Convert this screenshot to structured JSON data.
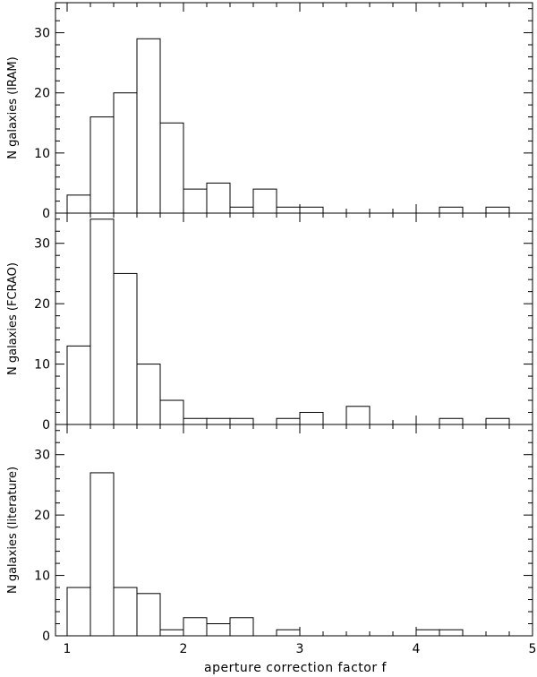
{
  "chart_data": [
    {
      "type": "bar",
      "panel": "top",
      "ylabel": "N galaxies (IRAM)",
      "ylim": [
        0,
        35
      ],
      "yticks": [
        "0",
        "10",
        "20",
        "30"
      ],
      "x_bin_edges": [
        1.0,
        1.2,
        1.4,
        1.6,
        1.8,
        2.0,
        2.2,
        2.4,
        2.6,
        2.8,
        3.0,
        3.2,
        3.4,
        3.6,
        3.8,
        4.0,
        4.2,
        4.4,
        4.6,
        4.8
      ],
      "values": [
        3,
        16,
        20,
        29,
        15,
        4,
        5,
        1,
        4,
        1,
        1,
        0,
        0,
        0,
        0,
        0,
        1,
        0,
        1
      ]
    },
    {
      "type": "bar",
      "panel": "middle",
      "ylabel": "N galaxies (FCRAO)",
      "ylim": [
        0,
        35
      ],
      "yticks": [
        "0",
        "10",
        "20",
        "30"
      ],
      "x_bin_edges": [
        1.0,
        1.2,
        1.4,
        1.6,
        1.8,
        2.0,
        2.2,
        2.4,
        2.6,
        2.8,
        3.0,
        3.2,
        3.4,
        3.6,
        3.8,
        4.0,
        4.2,
        4.4,
        4.6,
        4.8
      ],
      "values": [
        13,
        34,
        25,
        10,
        4,
        1,
        1,
        1,
        0,
        1,
        2,
        0,
        3,
        0,
        0,
        0,
        1,
        0,
        1
      ]
    },
    {
      "type": "bar",
      "panel": "bottom",
      "ylabel": "N galaxies (literature)",
      "ylim": [
        0,
        35
      ],
      "yticks": [
        "0",
        "10",
        "20",
        "30"
      ],
      "x_bin_edges": [
        1.0,
        1.2,
        1.4,
        1.6,
        1.8,
        2.0,
        2.2,
        2.4,
        2.6,
        2.8,
        3.0,
        3.2,
        3.4,
        3.6,
        3.8,
        4.0,
        4.2,
        4.4,
        4.6,
        4.8
      ],
      "values": [
        8,
        27,
        8,
        7,
        1,
        3,
        2,
        3,
        0,
        1,
        0,
        0,
        0,
        0,
        0,
        1,
        1,
        0,
        0
      ]
    }
  ],
  "axes": {
    "xlabel": "aperture correction factor f",
    "xlim": [
      0.9,
      5.0
    ],
    "xticks": [
      "1",
      "2",
      "3",
      "4",
      "5"
    ]
  }
}
